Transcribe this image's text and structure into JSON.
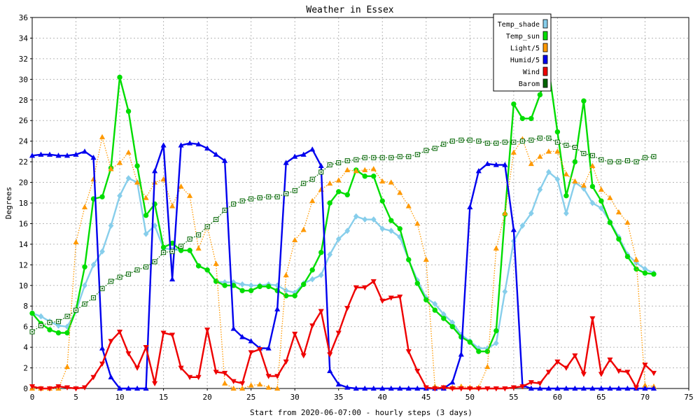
{
  "chart_data": {
    "type": "line",
    "title": "Weather in Essex",
    "xlabel": "Start from 2020-06-07:00 - hourly steps (3 days)",
    "ylabel": "Degrees",
    "xlim": [
      0,
      75
    ],
    "ylim": [
      0,
      36
    ],
    "x_ticks": [
      0,
      5,
      10,
      15,
      20,
      25,
      30,
      35,
      40,
      45,
      50,
      55,
      60,
      65,
      70,
      75
    ],
    "y_ticks": [
      0,
      2,
      4,
      6,
      8,
      10,
      12,
      14,
      16,
      18,
      20,
      22,
      24,
      26,
      28,
      30,
      32,
      34,
      36
    ],
    "grid": true,
    "legend_position": "top-right",
    "x": [
      0,
      1,
      2,
      3,
      4,
      5,
      6,
      7,
      8,
      9,
      10,
      11,
      12,
      13,
      14,
      15,
      16,
      17,
      18,
      19,
      20,
      21,
      22,
      23,
      24,
      25,
      26,
      27,
      28,
      29,
      30,
      31,
      32,
      33,
      34,
      35,
      36,
      37,
      38,
      39,
      40,
      41,
      42,
      43,
      44,
      45,
      46,
      47,
      48,
      49,
      50,
      51,
      52,
      53,
      54,
      55,
      56,
      57,
      58,
      59,
      60,
      61,
      62,
      63,
      64,
      65,
      66,
      67,
      68,
      69,
      70,
      71
    ],
    "series": [
      {
        "name": "Temp_shade",
        "color": "#87ceeb",
        "style": "solid",
        "marker": "diamond",
        "values": [
          7.3,
          7.0,
          6.5,
          6.1,
          6.0,
          7.5,
          10.0,
          12.0,
          13.3,
          15.8,
          18.7,
          20.4,
          20.0,
          15.0,
          15.8,
          13.6,
          13.5,
          13.4,
          13.4,
          11.9,
          11.5,
          10.4,
          10.3,
          10.3,
          10.1,
          10.0,
          10.0,
          10.1,
          10.0,
          9.5,
          9.3,
          10.2,
          10.6,
          11.0,
          13.0,
          14.5,
          15.3,
          16.7,
          16.4,
          16.4,
          15.5,
          15.3,
          14.7,
          12.5,
          10.5,
          8.8,
          8.2,
          7.2,
          6.4,
          5.2,
          4.6,
          3.9,
          3.9,
          4.4,
          9.4,
          14.3,
          15.8,
          17.0,
          19.3,
          21.0,
          20.3,
          17.0,
          20.0,
          19.4,
          18.0,
          17.5,
          16.2,
          14.7,
          13.0,
          12.2,
          11.6,
          11.2
        ]
      },
      {
        "name": "Temp_sun",
        "color": "#00dd00",
        "style": "solid",
        "marker": "circle",
        "values": [
          7.3,
          6.3,
          5.7,
          5.4,
          5.4,
          7.6,
          11.8,
          18.4,
          18.6,
          21.4,
          30.2,
          26.9,
          21.6,
          16.8,
          17.9,
          13.7,
          14.1,
          13.4,
          13.4,
          11.9,
          11.5,
          10.4,
          10.0,
          10.0,
          9.5,
          9.5,
          9.9,
          9.9,
          9.5,
          9.0,
          9.0,
          10.1,
          11.5,
          13.2,
          18.0,
          19.1,
          18.8,
          21.2,
          20.6,
          20.6,
          18.2,
          16.3,
          15.5,
          12.5,
          10.2,
          8.6,
          7.6,
          6.8,
          6.0,
          5.0,
          4.5,
          3.6,
          3.6,
          5.6,
          16.9,
          27.6,
          26.2,
          26.2,
          28.5,
          31.0,
          24.9,
          18.7,
          22.0,
          27.9,
          19.6,
          18.2,
          16.1,
          14.5,
          12.8,
          11.6,
          11.2,
          11.1
        ]
      },
      {
        "name": "Light/5",
        "color": "#ff9900",
        "style": "dotted",
        "marker": "triangle",
        "values": [
          0.0,
          0.0,
          0.0,
          0.0,
          2.1,
          14.2,
          17.6,
          20.3,
          24.4,
          21.3,
          21.9,
          22.9,
          20.0,
          18.5,
          20.0,
          20.3,
          17.7,
          19.6,
          18.7,
          13.6,
          15.7,
          12.1,
          0.5,
          0.0,
          0.0,
          0.3,
          0.4,
          0.1,
          0.0,
          11.0,
          14.4,
          15.4,
          18.2,
          19.3,
          19.9,
          20.2,
          21.2,
          21.1,
          21.2,
          21.3,
          20.1,
          20.0,
          19.0,
          17.7,
          16.0,
          12.5,
          0.2,
          0.1,
          0.1,
          0.2,
          0.1,
          0.1,
          2.1,
          13.6,
          17.0,
          22.9,
          24.2,
          21.8,
          22.5,
          23.0,
          23.0,
          20.8,
          20.1,
          19.7,
          21.6,
          19.3,
          18.5,
          17.1,
          16.1,
          12.5,
          0.3,
          0.2
        ]
      },
      {
        "name": "Humid/5",
        "color": "#0000ee",
        "style": "solid",
        "marker": "triangle",
        "values": [
          22.6,
          22.7,
          22.7,
          22.6,
          22.6,
          22.7,
          23.0,
          22.4,
          3.9,
          1.1,
          0.0,
          0.0,
          0.0,
          0.0,
          21.1,
          23.6,
          10.6,
          23.6,
          23.8,
          23.7,
          23.3,
          22.7,
          22.1,
          5.8,
          5.0,
          4.6,
          3.9,
          3.9,
          7.7,
          21.9,
          22.5,
          22.7,
          23.2,
          21.6,
          1.7,
          0.4,
          0.1,
          0.0,
          0.0,
          0.0,
          0.0,
          0.0,
          0.0,
          0.0,
          0.0,
          0.0,
          0.0,
          0.0,
          0.6,
          3.3,
          17.6,
          21.1,
          21.8,
          21.7,
          21.7,
          15.4,
          0.3,
          0.0,
          0.0,
          0.0,
          0.0,
          0.0,
          0.0,
          0.0,
          0.0,
          0.0,
          0.0,
          0.0,
          0.0,
          0.0,
          0.0,
          0.0
        ]
      },
      {
        "name": "Wind",
        "color": "#ee0000",
        "style": "solid",
        "marker": "triangle-down",
        "values": [
          0.2,
          0.0,
          0.0,
          0.2,
          0.1,
          0.0,
          0.1,
          1.1,
          2.4,
          4.6,
          5.5,
          3.4,
          2.0,
          4.0,
          0.5,
          5.4,
          5.2,
          2.0,
          1.1,
          1.1,
          5.7,
          1.6,
          1.5,
          0.7,
          0.5,
          3.5,
          3.8,
          1.2,
          1.2,
          2.6,
          5.3,
          3.2,
          6.1,
          7.5,
          3.3,
          5.4,
          7.8,
          9.8,
          9.8,
          10.4,
          8.5,
          8.8,
          8.9,
          3.6,
          1.7,
          0.1,
          0.0,
          0.1,
          0.0,
          0.0,
          0.0,
          0.0,
          0.0,
          0.0,
          0.0,
          0.1,
          0.2,
          0.6,
          0.5,
          1.6,
          2.6,
          2.0,
          3.2,
          1.4,
          6.8,
          1.4,
          2.8,
          1.7,
          1.6,
          0.1,
          2.3,
          1.5
        ]
      },
      {
        "name": "Barom",
        "color": "#006400",
        "style": "dotted",
        "marker": "square",
        "values": [
          5.5,
          6.1,
          6.4,
          6.5,
          7.0,
          7.6,
          8.2,
          8.8,
          9.7,
          10.4,
          10.8,
          11.1,
          11.5,
          11.8,
          12.3,
          13.2,
          13.3,
          13.8,
          14.5,
          14.9,
          15.7,
          16.4,
          17.3,
          17.9,
          18.2,
          18.4,
          18.5,
          18.6,
          18.6,
          18.9,
          19.2,
          19.9,
          20.3,
          21.0,
          21.7,
          21.9,
          22.1,
          22.2,
          22.4,
          22.4,
          22.4,
          22.4,
          22.5,
          22.5,
          22.7,
          23.1,
          23.3,
          23.7,
          24.0,
          24.1,
          24.1,
          24.0,
          23.8,
          23.8,
          23.9,
          23.9,
          24.0,
          24.1,
          24.3,
          24.3,
          23.9,
          23.6,
          23.4,
          22.8,
          22.6,
          22.2,
          22.0,
          22.0,
          22.1,
          22.0,
          22.4,
          22.5
        ]
      }
    ]
  }
}
